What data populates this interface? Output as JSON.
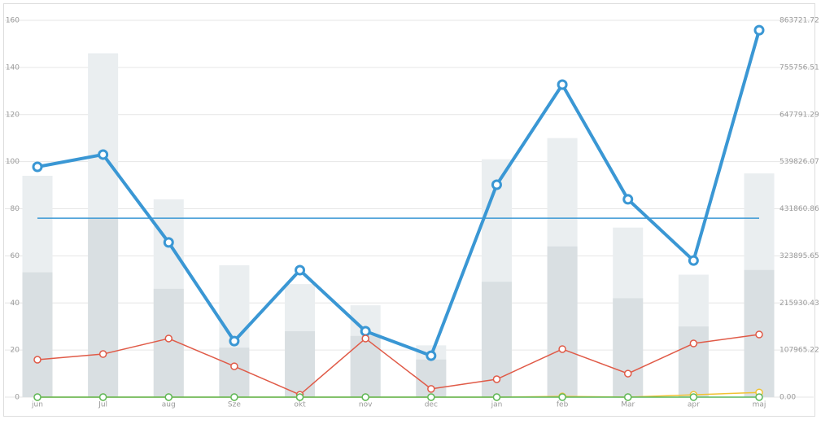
{
  "chart_data": {
    "type": "combo",
    "categories": [
      "jun",
      "Jul",
      "aug",
      "Sze",
      "okt",
      "nov",
      "dec",
      "jan",
      "feb",
      "Mar",
      "apr",
      "maj"
    ],
    "bar_series": [
      {
        "color": "#eaeef0",
        "values": [
          94,
          146,
          84,
          56,
          48,
          39,
          22,
          101,
          110,
          72,
          52,
          95
        ]
      },
      {
        "color": "#d9dfe2",
        "values": [
          53,
          76,
          46,
          21,
          28,
          26,
          16,
          49,
          64,
          42,
          30,
          54
        ]
      }
    ],
    "series": [
      {
        "color": "#3a97d4",
        "width": 4,
        "values": [
          97.8,
          103,
          65.7,
          23.8,
          53.9,
          28,
          17.6,
          90.2,
          132.7,
          84,
          58,
          155.8
        ]
      },
      {
        "color": "#e05a47",
        "width": 1.5,
        "values": [
          15.9,
          18.3,
          24.9,
          13.1,
          1,
          24.9,
          3.5,
          7.6,
          20.4,
          10,
          22.8,
          26.6
        ]
      },
      {
        "color": "#f1c232",
        "width": 1.5,
        "values": [
          0,
          0,
          0,
          0,
          0,
          0,
          0,
          0,
          0.3,
          0,
          1,
          2
        ]
      },
      {
        "color": "#5cb85c",
        "width": 1.5,
        "values": [
          0,
          0,
          0,
          0,
          0,
          0,
          0,
          0,
          0,
          0,
          0,
          0
        ]
      }
    ],
    "reference_line": {
      "value": 76,
      "color": "#3a97d4"
    },
    "ylim": [
      0,
      160
    ],
    "yticks": [
      0,
      20,
      40,
      60,
      80,
      100,
      120,
      140,
      160
    ],
    "y2lim": [
      0,
      863721.72
    ],
    "y2ticks": [
      {
        "value": 0,
        "label": "0.00"
      },
      107965.22,
      215930.43,
      323895.65,
      431860.86,
      539826.07,
      647791.29,
      755756.51,
      863721.72
    ],
    "grid": true
  }
}
